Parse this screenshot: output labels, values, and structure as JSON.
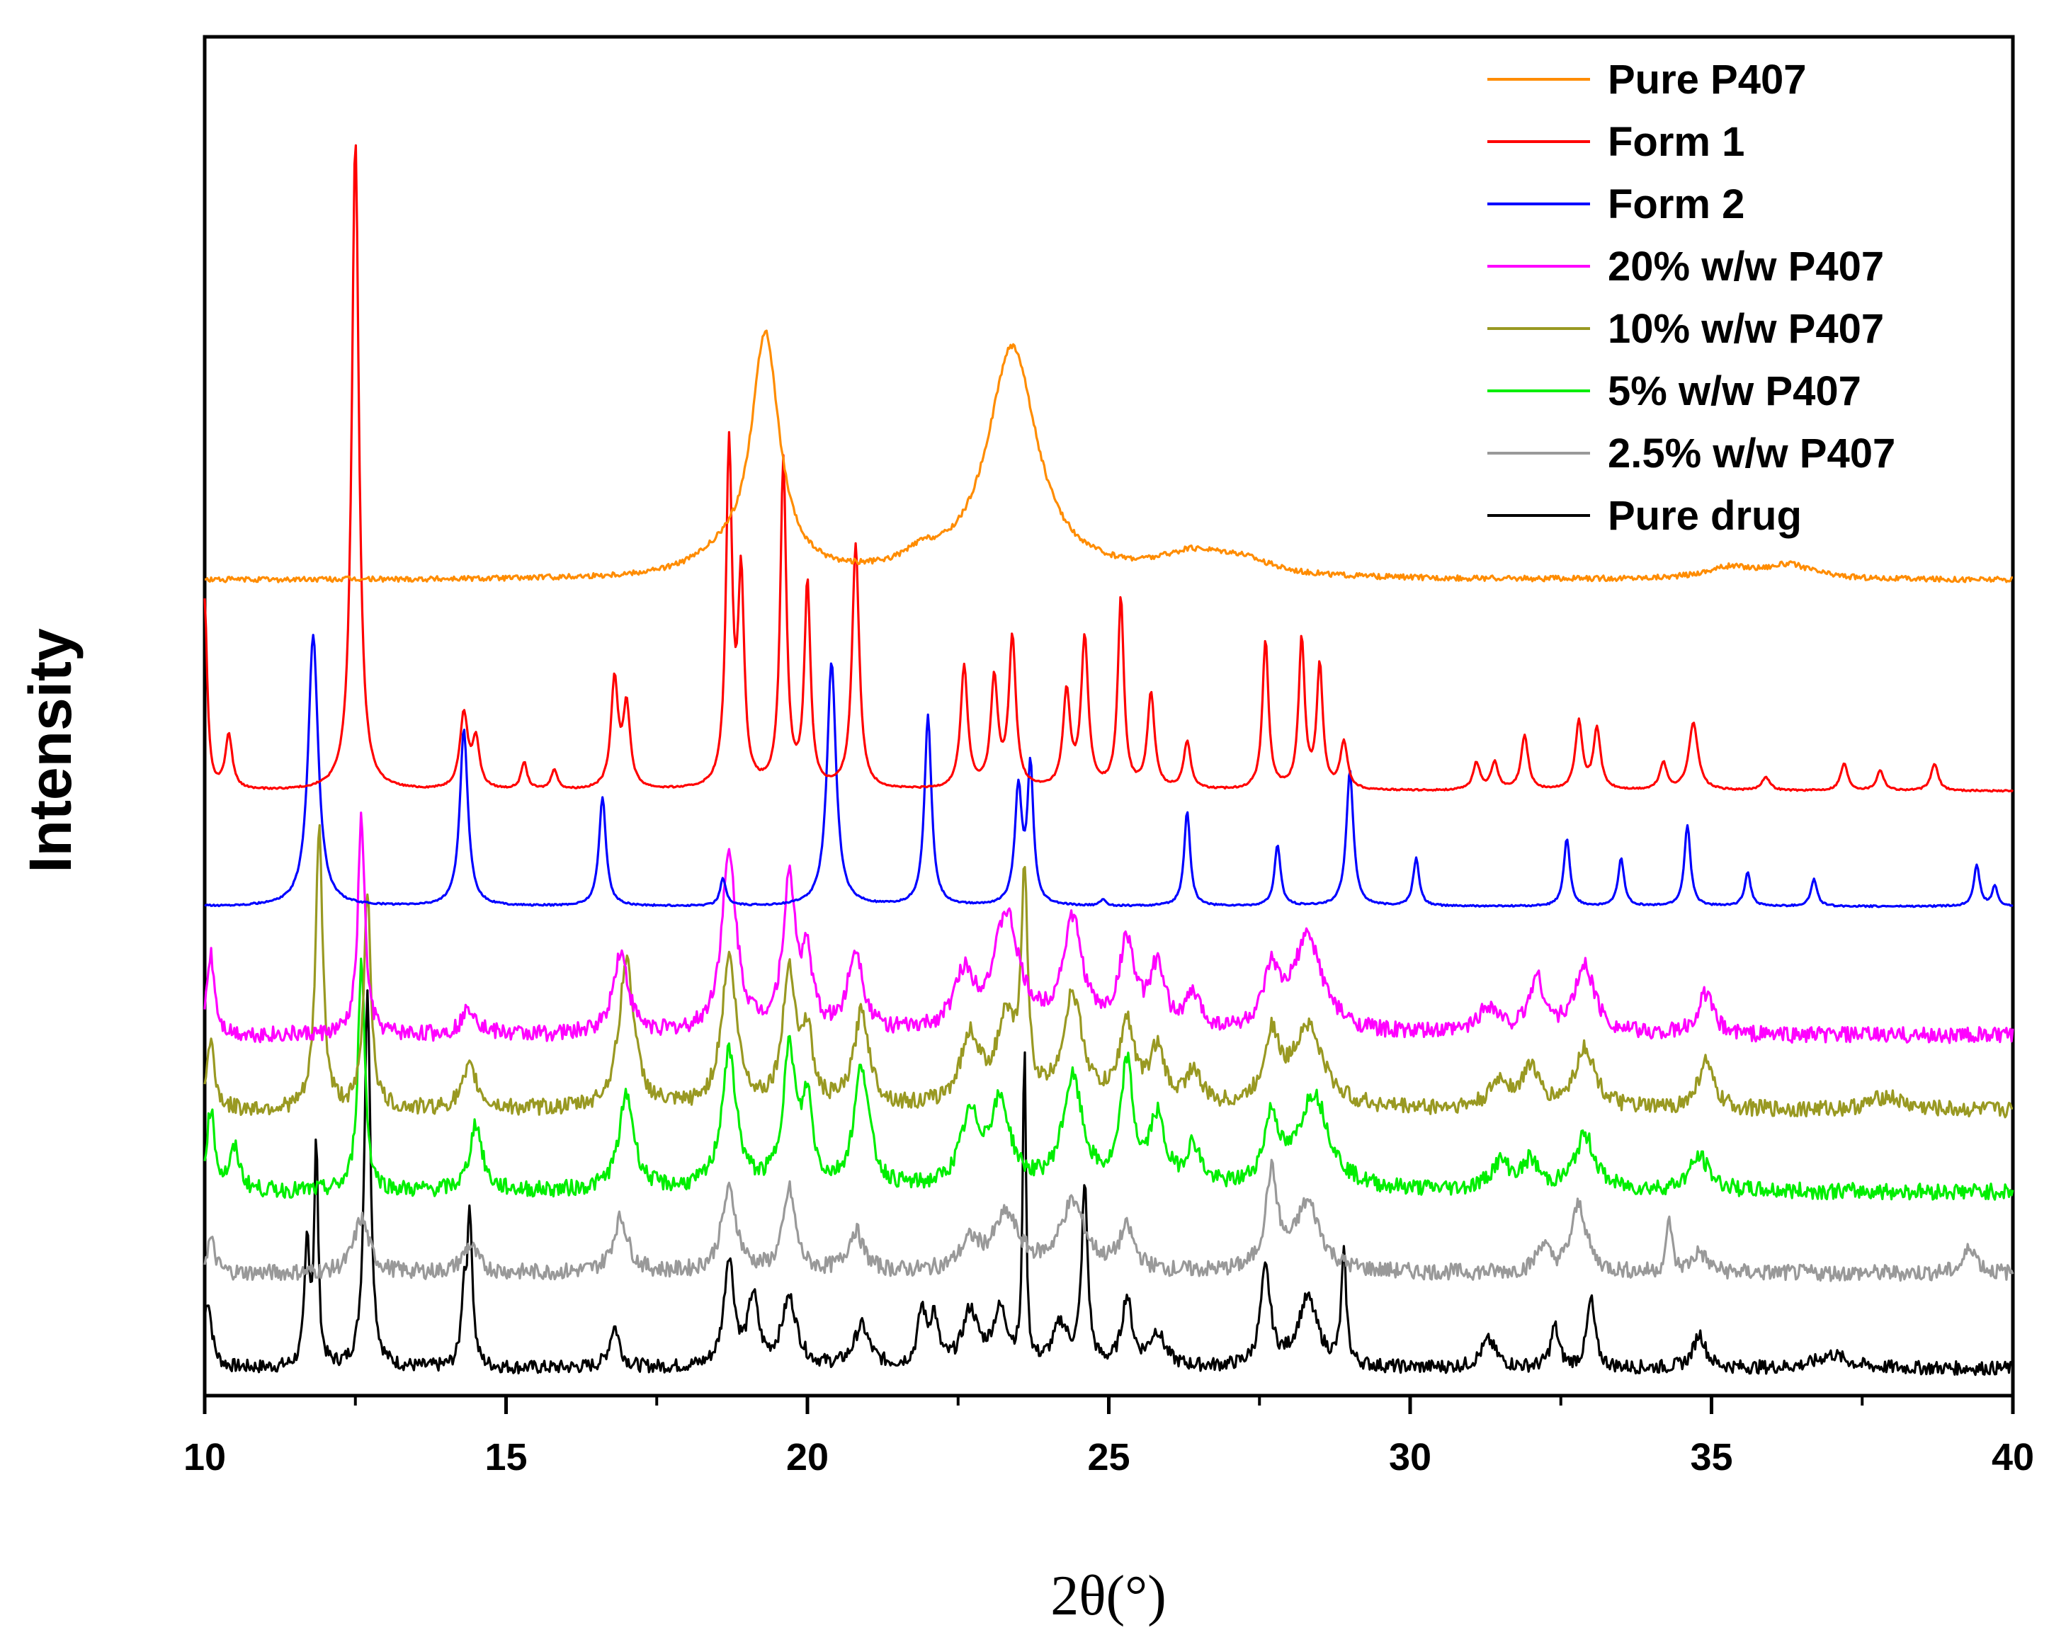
{
  "chart_data": {
    "type": "line",
    "title": "",
    "xlabel": "2θ(°)",
    "ylabel": "Intensity",
    "xlim": [
      10,
      40
    ],
    "xticks": [
      10,
      15,
      20,
      25,
      30,
      35,
      40
    ],
    "xtick_labels": [
      "10",
      "15",
      "20",
      "25",
      "30",
      "35",
      "40"
    ],
    "ylim": [
      0,
      1
    ],
    "yticks_shown": false,
    "grid": false,
    "legend_position": "top-right",
    "series": [
      {
        "name": "Pure P407",
        "color": "#FF8C00",
        "baseline": 0.6,
        "noise": 0.002,
        "peaks": [
          [
            18.6,
            0.012,
            0.6
          ],
          [
            19.3,
            0.175,
            0.28
          ],
          [
            21.9,
            0.01,
            0.35
          ],
          [
            23.4,
            0.17,
            0.5
          ],
          [
            26.4,
            0.015,
            0.7
          ],
          [
            27.2,
            0.01,
            0.6
          ],
          [
            35.3,
            0.008,
            0.5
          ],
          [
            36.3,
            0.01,
            0.5
          ]
        ]
      },
      {
        "name": "Form 1",
        "color": "#FF0000",
        "baseline": 0.445,
        "noise": 0.0006,
        "peaks": [
          [
            10.0,
            0.14,
            0.05
          ],
          [
            10.4,
            0.04,
            0.07
          ],
          [
            12.5,
            0.48,
            0.07
          ],
          [
            14.3,
            0.055,
            0.08
          ],
          [
            14.5,
            0.035,
            0.07
          ],
          [
            15.3,
            0.02,
            0.06
          ],
          [
            15.8,
            0.015,
            0.06
          ],
          [
            16.8,
            0.08,
            0.07
          ],
          [
            17.0,
            0.06,
            0.07
          ],
          [
            18.7,
            0.25,
            0.06
          ],
          [
            18.9,
            0.15,
            0.06
          ],
          [
            19.6,
            0.24,
            0.06
          ],
          [
            20.0,
            0.15,
            0.06
          ],
          [
            20.8,
            0.18,
            0.07
          ],
          [
            22.6,
            0.09,
            0.07
          ],
          [
            23.1,
            0.08,
            0.07
          ],
          [
            23.4,
            0.11,
            0.07
          ],
          [
            24.3,
            0.07,
            0.07
          ],
          [
            24.6,
            0.11,
            0.07
          ],
          [
            25.2,
            0.14,
            0.06
          ],
          [
            25.7,
            0.07,
            0.07
          ],
          [
            26.3,
            0.035,
            0.07
          ],
          [
            27.6,
            0.11,
            0.06
          ],
          [
            28.2,
            0.11,
            0.06
          ],
          [
            28.5,
            0.09,
            0.06
          ],
          [
            28.9,
            0.035,
            0.07
          ],
          [
            31.1,
            0.02,
            0.07
          ],
          [
            31.4,
            0.02,
            0.07
          ],
          [
            31.9,
            0.04,
            0.07
          ],
          [
            32.8,
            0.05,
            0.07
          ],
          [
            33.1,
            0.045,
            0.07
          ],
          [
            34.2,
            0.02,
            0.07
          ],
          [
            34.7,
            0.05,
            0.09
          ],
          [
            35.9,
            0.01,
            0.08
          ],
          [
            37.2,
            0.02,
            0.07
          ],
          [
            37.8,
            0.015,
            0.07
          ],
          [
            38.7,
            0.02,
            0.07
          ]
        ]
      },
      {
        "name": "Form 2",
        "color": "#0000FF",
        "baseline": 0.36,
        "noise": 0.0006,
        "peaks": [
          [
            11.8,
            0.2,
            0.1
          ],
          [
            14.3,
            0.13,
            0.08
          ],
          [
            16.6,
            0.08,
            0.07
          ],
          [
            18.6,
            0.02,
            0.06
          ],
          [
            20.4,
            0.18,
            0.09
          ],
          [
            22.0,
            0.14,
            0.07
          ],
          [
            23.5,
            0.085,
            0.07
          ],
          [
            23.7,
            0.1,
            0.06
          ],
          [
            24.9,
            0.005,
            0.05
          ],
          [
            26.3,
            0.07,
            0.06
          ],
          [
            27.8,
            0.045,
            0.06
          ],
          [
            29.0,
            0.1,
            0.07
          ],
          [
            30.1,
            0.035,
            0.06
          ],
          [
            32.6,
            0.05,
            0.06
          ],
          [
            33.5,
            0.035,
            0.06
          ],
          [
            34.6,
            0.06,
            0.06
          ],
          [
            35.6,
            0.025,
            0.06
          ],
          [
            36.7,
            0.02,
            0.06
          ],
          [
            39.4,
            0.03,
            0.06
          ],
          [
            39.7,
            0.015,
            0.05
          ]
        ]
      },
      {
        "name": "20% w/w P407",
        "color": "#FF00FF",
        "baseline": 0.265,
        "noise": 0.006,
        "peaks": [
          [
            10.1,
            0.06,
            0.08
          ],
          [
            12.6,
            0.16,
            0.07
          ],
          [
            14.4,
            0.02,
            0.15
          ],
          [
            16.9,
            0.06,
            0.15
          ],
          [
            18.7,
            0.13,
            0.15
          ],
          [
            19.7,
            0.11,
            0.13
          ],
          [
            20.0,
            0.05,
            0.1
          ],
          [
            20.8,
            0.06,
            0.15
          ],
          [
            22.6,
            0.04,
            0.2
          ],
          [
            23.3,
            0.085,
            0.25
          ],
          [
            24.4,
            0.08,
            0.2
          ],
          [
            25.3,
            0.065,
            0.15
          ],
          [
            25.8,
            0.045,
            0.15
          ],
          [
            26.4,
            0.025,
            0.15
          ],
          [
            27.7,
            0.04,
            0.15
          ],
          [
            28.3,
            0.07,
            0.3
          ],
          [
            31.3,
            0.02,
            0.2
          ],
          [
            32.1,
            0.04,
            0.15
          ],
          [
            32.9,
            0.05,
            0.2
          ],
          [
            34.9,
            0.03,
            0.15
          ]
        ]
      },
      {
        "name": "10% w/w P407",
        "color": "#999922",
        "baseline": 0.21,
        "noise": 0.006,
        "peaks": [
          [
            10.1,
            0.05,
            0.08
          ],
          [
            11.9,
            0.21,
            0.07
          ],
          [
            12.7,
            0.16,
            0.07
          ],
          [
            14.4,
            0.03,
            0.15
          ],
          [
            17.0,
            0.11,
            0.15
          ],
          [
            18.7,
            0.11,
            0.15
          ],
          [
            19.7,
            0.1,
            0.13
          ],
          [
            20.0,
            0.05,
            0.1
          ],
          [
            20.9,
            0.07,
            0.15
          ],
          [
            22.7,
            0.05,
            0.2
          ],
          [
            23.3,
            0.06,
            0.2
          ],
          [
            23.6,
            0.16,
            0.06
          ],
          [
            24.4,
            0.08,
            0.2
          ],
          [
            25.3,
            0.06,
            0.15
          ],
          [
            25.8,
            0.04,
            0.15
          ],
          [
            26.4,
            0.025,
            0.15
          ],
          [
            27.7,
            0.05,
            0.15
          ],
          [
            28.3,
            0.06,
            0.3
          ],
          [
            31.5,
            0.02,
            0.2
          ],
          [
            32.0,
            0.03,
            0.15
          ],
          [
            32.9,
            0.045,
            0.2
          ],
          [
            34.9,
            0.035,
            0.15
          ],
          [
            37.9,
            0.01,
            0.3
          ]
        ]
      },
      {
        "name": "5% w/w P407",
        "color": "#00EE00",
        "baseline": 0.15,
        "noise": 0.006,
        "peaks": [
          [
            10.1,
            0.06,
            0.08
          ],
          [
            10.5,
            0.03,
            0.1
          ],
          [
            12.6,
            0.17,
            0.07
          ],
          [
            14.5,
            0.05,
            0.12
          ],
          [
            17.0,
            0.07,
            0.15
          ],
          [
            18.7,
            0.1,
            0.15
          ],
          [
            19.7,
            0.1,
            0.13
          ],
          [
            20.0,
            0.06,
            0.1
          ],
          [
            20.9,
            0.09,
            0.15
          ],
          [
            22.7,
            0.05,
            0.2
          ],
          [
            23.2,
            0.06,
            0.2
          ],
          [
            24.4,
            0.08,
            0.2
          ],
          [
            25.3,
            0.09,
            0.12
          ],
          [
            25.8,
            0.05,
            0.15
          ],
          [
            26.4,
            0.03,
            0.15
          ],
          [
            27.7,
            0.05,
            0.15
          ],
          [
            28.4,
            0.07,
            0.3
          ],
          [
            31.5,
            0.02,
            0.2
          ],
          [
            32.0,
            0.02,
            0.15
          ],
          [
            32.9,
            0.04,
            0.2
          ],
          [
            34.8,
            0.025,
            0.2
          ]
        ]
      },
      {
        "name": "2.5% w/w P407",
        "color": "#999999",
        "baseline": 0.09,
        "noise": 0.006,
        "peaks": [
          [
            10.1,
            0.025,
            0.08
          ],
          [
            12.6,
            0.04,
            0.15
          ],
          [
            14.4,
            0.02,
            0.15
          ],
          [
            16.9,
            0.04,
            0.15
          ],
          [
            18.7,
            0.06,
            0.15
          ],
          [
            19.7,
            0.06,
            0.12
          ],
          [
            20.8,
            0.03,
            0.15
          ],
          [
            22.7,
            0.02,
            0.2
          ],
          [
            23.3,
            0.04,
            0.25
          ],
          [
            24.4,
            0.05,
            0.25
          ],
          [
            25.3,
            0.03,
            0.15
          ],
          [
            27.7,
            0.07,
            0.12
          ],
          [
            28.3,
            0.05,
            0.25
          ],
          [
            32.2,
            0.02,
            0.12
          ],
          [
            32.8,
            0.05,
            0.15
          ],
          [
            34.3,
            0.04,
            0.05
          ],
          [
            34.8,
            0.015,
            0.15
          ],
          [
            39.3,
            0.02,
            0.12
          ]
        ]
      },
      {
        "name": "Pure drug",
        "color": "#000000",
        "baseline": 0.02,
        "noise": 0.005,
        "peaks": [
          [
            10.05,
            0.05,
            0.08
          ],
          [
            11.7,
            0.09,
            0.05
          ],
          [
            11.85,
            0.16,
            0.04
          ],
          [
            12.7,
            0.28,
            0.06
          ],
          [
            14.3,
            0.05,
            0.05
          ],
          [
            14.4,
            0.11,
            0.05
          ],
          [
            16.8,
            0.03,
            0.1
          ],
          [
            18.7,
            0.08,
            0.1
          ],
          [
            19.1,
            0.05,
            0.1
          ],
          [
            19.7,
            0.05,
            0.15
          ],
          [
            20.9,
            0.03,
            0.15
          ],
          [
            21.9,
            0.04,
            0.08
          ],
          [
            22.1,
            0.035,
            0.08
          ],
          [
            22.7,
            0.04,
            0.15
          ],
          [
            23.2,
            0.04,
            0.15
          ],
          [
            23.6,
            0.24,
            0.03
          ],
          [
            24.2,
            0.03,
            0.15
          ],
          [
            24.6,
            0.13,
            0.06
          ],
          [
            25.3,
            0.05,
            0.1
          ],
          [
            25.8,
            0.025,
            0.15
          ],
          [
            27.6,
            0.07,
            0.1
          ],
          [
            28.3,
            0.05,
            0.2
          ],
          [
            28.9,
            0.08,
            0.05
          ],
          [
            31.3,
            0.02,
            0.15
          ],
          [
            32.4,
            0.03,
            0.08
          ],
          [
            33.0,
            0.05,
            0.08
          ],
          [
            34.8,
            0.025,
            0.12
          ],
          [
            37.0,
            0.01,
            0.3
          ]
        ]
      }
    ]
  }
}
